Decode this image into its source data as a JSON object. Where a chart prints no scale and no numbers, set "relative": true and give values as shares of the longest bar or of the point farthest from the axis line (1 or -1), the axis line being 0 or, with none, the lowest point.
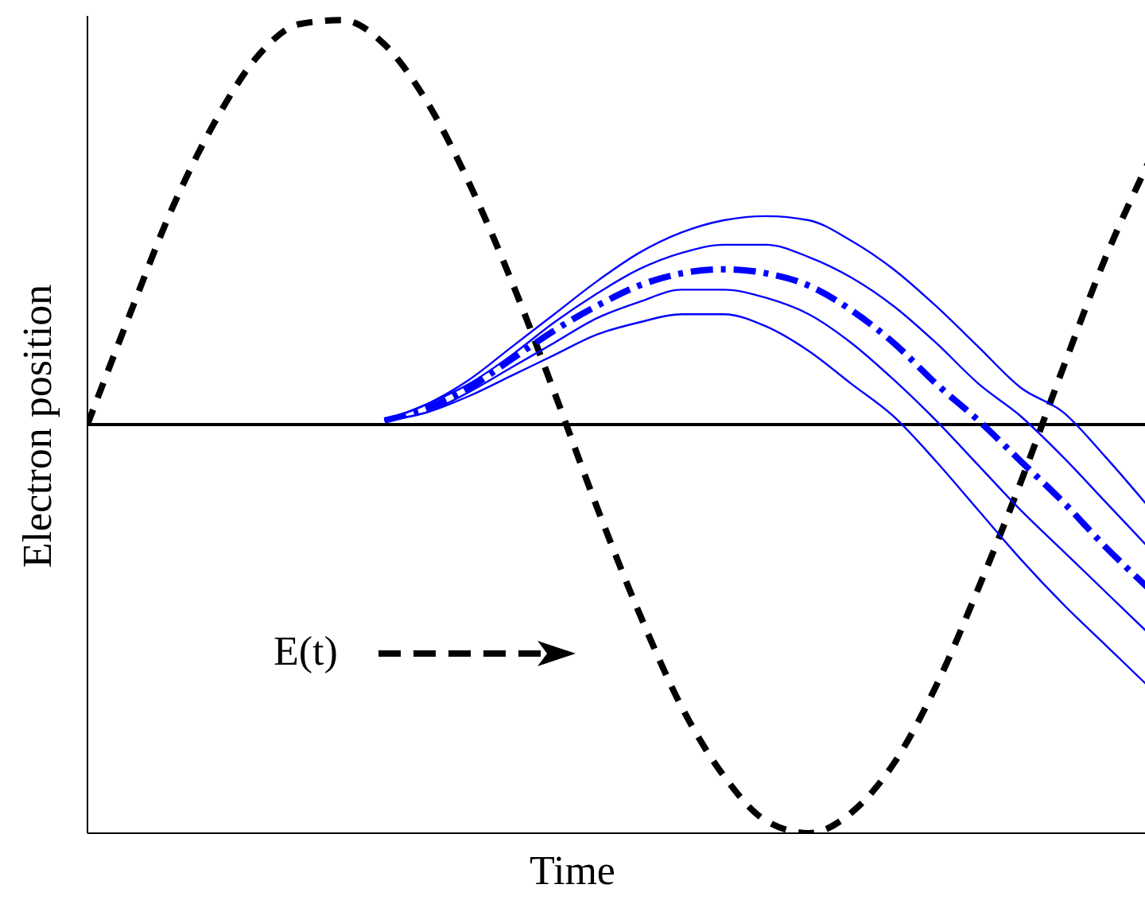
{
  "chart_data": {
    "type": "line",
    "relative": true,
    "xlabel": "Time",
    "ylabel": "Electron position",
    "categories": [
      null,
      null,
      null,
      null,
      null,
      null,
      null,
      null,
      null,
      null,
      null,
      null,
      null,
      null,
      null,
      null,
      null,
      null,
      null,
      null,
      null,
      null,
      null,
      null,
      null,
      null
    ],
    "series": [
      {
        "name": "E(t)",
        "color": "#000000",
        "line_style": "dashed",
        "values": [
          0,
          0.27,
          0.53,
          0.74,
          0.9,
          0.98,
          0.99,
          0.93,
          0.79,
          0.59,
          0.35,
          0.08,
          -0.2,
          -0.46,
          -0.69,
          -0.86,
          -0.97,
          -1,
          -0.95,
          -0.83,
          -0.64,
          -0.4,
          -0.14,
          0.14,
          0.41,
          0.64
        ]
      },
      {
        "color": "#0000ff",
        "line_style": "solid",
        "values": [
          null,
          null,
          null,
          null,
          null,
          null,
          null,
          0.01,
          0.05,
          0.11,
          0.19,
          0.27,
          0.35,
          0.42,
          0.47,
          0.5,
          0.51,
          0.5,
          0.45,
          0.38,
          0.29,
          0.19,
          0.09,
          0.03,
          -0.08,
          -0.2
        ]
      },
      {
        "color": "#0000ff",
        "line_style": "solid",
        "values": [
          null,
          null,
          null,
          null,
          null,
          null,
          null,
          0.01,
          0.05,
          0.1,
          0.17,
          0.25,
          0.32,
          0.38,
          0.42,
          0.44,
          0.44,
          0.41,
          0.36,
          0.29,
          0.2,
          0.1,
          0.02,
          -0.08,
          -0.19,
          -0.3
        ]
      },
      {
        "color": "#0000ff",
        "line_style": "dashed",
        "values": [
          null,
          null,
          null,
          null,
          null,
          null,
          null,
          0.01,
          0.04,
          0.09,
          0.16,
          0.23,
          0.29,
          0.34,
          0.37,
          0.38,
          0.37,
          0.34,
          0.28,
          0.2,
          0.1,
          0.01,
          -0.09,
          -0.19,
          -0.3,
          -0.4
        ]
      },
      {
        "color": "#0000ff",
        "line_style": "solid",
        "values": [
          null,
          null,
          null,
          null,
          null,
          null,
          null,
          0.01,
          0.03,
          0.08,
          0.14,
          0.2,
          0.26,
          0.3,
          0.33,
          0.33,
          0.31,
          0.27,
          0.2,
          0.11,
          0.01,
          -0.1,
          -0.21,
          -0.31,
          -0.41,
          -0.51
        ]
      },
      {
        "color": "#0000ff",
        "line_style": "solid",
        "values": [
          null,
          null,
          null,
          null,
          null,
          null,
          null,
          0.01,
          0.03,
          0.07,
          0.12,
          0.17,
          0.22,
          0.25,
          0.27,
          0.27,
          0.24,
          0.18,
          0.1,
          0.02,
          -0.09,
          -0.21,
          -0.33,
          -0.44,
          -0.54,
          -0.64
        ]
      }
    ],
    "ref_lines": [
      {
        "axis": "y",
        "value": 0,
        "color": "#000000"
      }
    ],
    "marker": "none",
    "grid": false,
    "legend": "bottom left"
  }
}
